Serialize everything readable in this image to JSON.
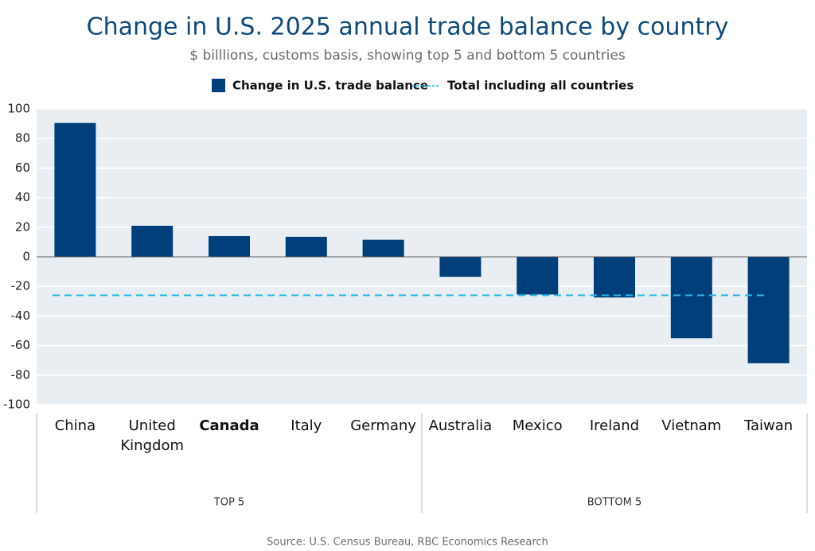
{
  "chart_data": {
    "type": "bar",
    "title": "Change in U.S. 2025 annual trade balance by country",
    "subtitle": "$ billlions, customs basis, showing top 5 and bottom 5 countries",
    "categories": [
      "China",
      "United Kingdom",
      "Canada",
      "Italy",
      "Germany",
      "Australia",
      "Mexico",
      "Ireland",
      "Vietnam",
      "Taiwan"
    ],
    "highlight_category": 2,
    "series": [
      {
        "name": "Change in U.S. trade balance",
        "color": "#003f7a",
        "values": [
          90.5,
          21,
          14,
          13.5,
          11.5,
          -13.5,
          -25.5,
          -27.5,
          -55,
          -72
        ]
      }
    ],
    "reference_line": {
      "name": "Total including all countries",
      "value": -26,
      "color": "#29b6e8"
    },
    "groups": [
      "TOP 5",
      "BOTTOM 5"
    ],
    "ylim": [
      -100,
      100
    ],
    "yticks": [
      -100,
      -80,
      -60,
      -40,
      -20,
      0,
      20,
      40,
      60,
      80,
      100
    ],
    "grid": true,
    "source": "Source: U.S. Census Bureau, RBC Economics Research"
  }
}
